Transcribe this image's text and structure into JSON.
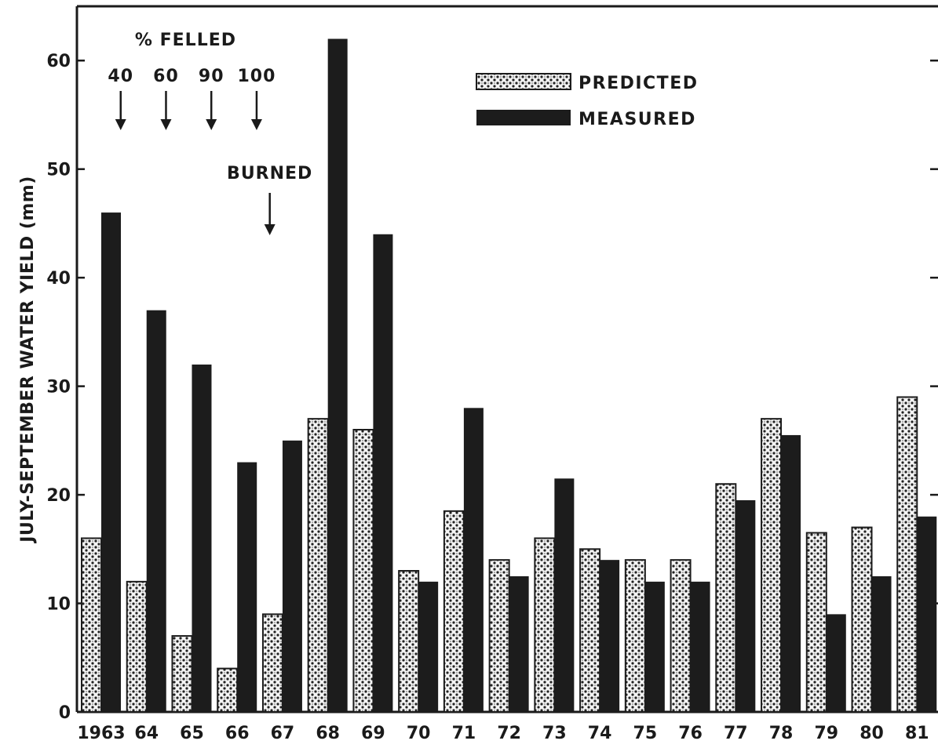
{
  "chart_data": {
    "type": "bar",
    "title": "",
    "xlabel": "",
    "ylabel": "JULY-SEPTEMBER WATER YIELD (mm)",
    "ylim": [
      0,
      65
    ],
    "yticks": [
      "0",
      "10",
      "20",
      "30",
      "40",
      "50",
      "60"
    ],
    "categories": [
      "1963",
      "64",
      "65",
      "66",
      "67",
      "68",
      "69",
      "70",
      "71",
      "72",
      "73",
      "74",
      "75",
      "76",
      "77",
      "78",
      "79",
      "80",
      "81"
    ],
    "series": [
      {
        "name": "PREDICTED",
        "values": [
          16,
          12,
          7,
          4,
          9,
          27,
          26,
          13,
          18.5,
          14,
          16,
          15,
          14,
          14,
          21,
          27,
          16.5,
          17,
          29
        ]
      },
      {
        "name": "MEASURED",
        "values": [
          46,
          37,
          32,
          23,
          25,
          62,
          44,
          12,
          28,
          12.5,
          21.5,
          14,
          12,
          12,
          19.5,
          25.5,
          9,
          12.5,
          18
        ]
      }
    ],
    "legend": {
      "position": "top-center"
    },
    "grid": false,
    "annotations": {
      "felled_title": "% FELLED",
      "felled": [
        {
          "label": "40",
          "year": "64"
        },
        {
          "label": "60",
          "year": "65"
        },
        {
          "label": "90",
          "year": "66"
        },
        {
          "label": "100",
          "year": "67"
        }
      ],
      "burned": {
        "label": "BURNED",
        "year": "67"
      }
    }
  },
  "colors": {
    "predicted": "#f2f2f2",
    "measured": "#1c1c1c",
    "axis": "#1a1a1a"
  }
}
